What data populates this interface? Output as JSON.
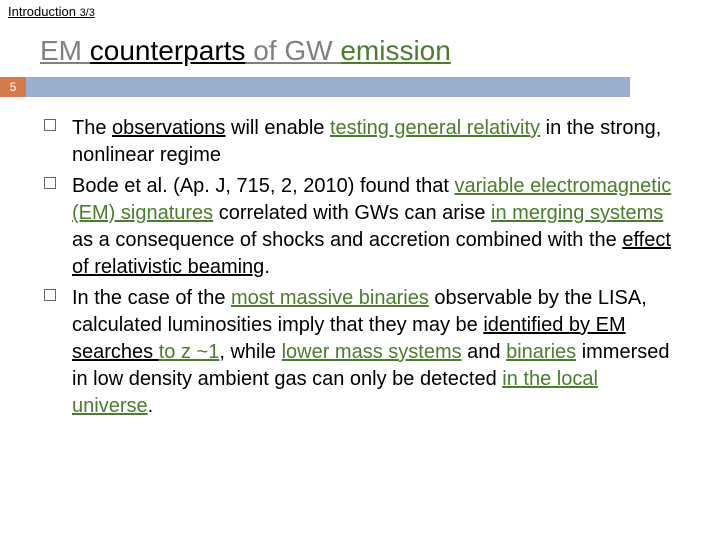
{
  "breadcrumb": {
    "main": "Introduction",
    "sub": "3/3"
  },
  "title": {
    "part1": "EM ",
    "part2": "counterparts",
    "part3": " of GW ",
    "part4": "emission"
  },
  "page_number": "5",
  "colors": {
    "page_num_bg": "#d77a4a",
    "bar_bg": "#9aaed0",
    "green": "#4a7d2e",
    "gray": "#808080"
  },
  "bullets": [
    {
      "runs": [
        {
          "t": "The ",
          "c": ""
        },
        {
          "t": "observations",
          "c": "u"
        },
        {
          "t": " will enable ",
          "c": ""
        },
        {
          "t": "testing general relativity",
          "c": "green u"
        },
        {
          "t": " in the strong, nonlinear regime",
          "c": ""
        }
      ]
    },
    {
      "runs": [
        {
          "t": "Bode et al. (Ap. J, 715, 2, 2010) found that ",
          "c": ""
        },
        {
          "t": "variable electromagnetic (EM) signatures",
          "c": "green u"
        },
        {
          "t": " correlated with GWs can arise ",
          "c": ""
        },
        {
          "t": "in merging systems",
          "c": "green u"
        },
        {
          "t": " as a consequence of shocks and accretion combined with the ",
          "c": ""
        },
        {
          "t": "effect of relativistic beaming",
          "c": "u"
        },
        {
          "t": ".",
          "c": ""
        }
      ]
    },
    {
      "runs": [
        {
          "t": "In the case of the ",
          "c": ""
        },
        {
          "t": "most massive binaries",
          "c": "green u"
        },
        {
          "t": " observable by the LISA, calculated luminosities imply that they may be ",
          "c": ""
        },
        {
          "t": "identified by EM searches ",
          "c": "u"
        },
        {
          "t": "to ",
          "c": "green u"
        },
        {
          "t": "z",
          "c": "green u"
        },
        {
          "t": " ~1",
          "c": "green u"
        },
        {
          "t": ", while ",
          "c": ""
        },
        {
          "t": "lower mass systems",
          "c": "green u"
        },
        {
          "t": " and ",
          "c": ""
        },
        {
          "t": "binaries",
          "c": "green u"
        },
        {
          "t": " immersed in low density ambient gas can only be detected ",
          "c": ""
        },
        {
          "t": "in the local universe",
          "c": "green u"
        },
        {
          "t": ".",
          "c": ""
        }
      ]
    }
  ]
}
